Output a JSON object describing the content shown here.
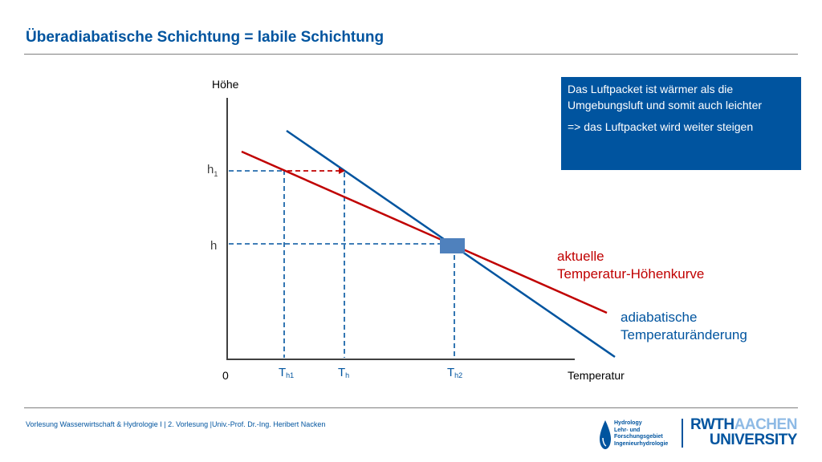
{
  "title": "Überadiabatische Schichtung = labile Schichtung",
  "diagram": {
    "y_axis_label": "Höhe",
    "x_axis_label": "Temperatur",
    "origin_label": "0",
    "levels": [
      {
        "base": "h",
        "sub": "1"
      },
      {
        "base": "h",
        "sub": ""
      }
    ],
    "temperatures": [
      {
        "base": "T",
        "sub": "h1"
      },
      {
        "base": "T",
        "sub": "h"
      },
      {
        "base": "T",
        "sub": "h2"
      }
    ],
    "curve_labels": {
      "actual": [
        "aktuelle",
        "Temperatur-Höhenkurve"
      ],
      "adiabatic": [
        "adiabatische",
        "Temperaturänderung"
      ]
    },
    "callout": {
      "text1": "Das Luftpacket ist wärmer als die Umgebungsluft und somit auch leichter",
      "text2": "=> das Luftpacket wird weiter steigen"
    },
    "colors": {
      "actual_curve": "#c00000",
      "adiabatic_curve": "#00549f",
      "guide_lines": "#00549f",
      "parcel": "#4f81bd",
      "callout_bg": "#00549f"
    }
  },
  "footer": {
    "text": "Vorlesung Wasserwirtschaft & Hydrologie I | 2. Vorlesung |Univ.-Prof. Dr.-Ing. Heribert Nacken"
  },
  "logos": {
    "hydrology": [
      "Hydrology",
      "Lehr- und",
      "Forschungsgebiet",
      "Ingenieurhydrologie"
    ],
    "rwth": [
      "RWTH",
      "AACHEN",
      "UNIVERSITY"
    ]
  }
}
